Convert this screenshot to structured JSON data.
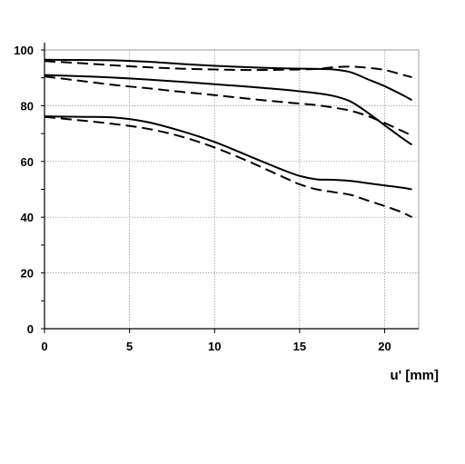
{
  "chart_data": {
    "type": "line",
    "title": "",
    "xlabel": "u' [mm]",
    "ylabel": "",
    "xlim": [
      0,
      22
    ],
    "ylim": [
      0,
      100
    ],
    "x_ticks": [
      0,
      5,
      10,
      15,
      20
    ],
    "y_ticks": [
      0,
      20,
      40,
      60,
      80,
      100
    ],
    "grid": true,
    "legend": "none",
    "series": [
      {
        "style": "solid",
        "color": "#000000",
        "x": [
          0,
          2,
          4,
          6,
          8,
          10,
          12,
          14,
          16,
          17,
          18,
          19,
          20,
          21,
          21.6
        ],
        "y": [
          96.5,
          96.4,
          96.3,
          95.8,
          95.0,
          94.3,
          93.8,
          93.4,
          93.2,
          93.0,
          92.0,
          89.5,
          87.0,
          84.0,
          82.0
        ]
      },
      {
        "style": "dashed",
        "color": "#000000",
        "x": [
          0,
          2,
          4,
          6,
          8,
          10,
          12,
          14,
          16,
          17,
          18,
          19,
          20,
          21,
          21.6
        ],
        "y": [
          96.0,
          95.3,
          94.5,
          93.8,
          93.3,
          93.0,
          92.8,
          92.9,
          93.2,
          93.8,
          94.0,
          93.6,
          92.8,
          91.2,
          90.2
        ]
      },
      {
        "style": "solid",
        "color": "#000000",
        "x": [
          0,
          2,
          4,
          6,
          8,
          10,
          12,
          14,
          16,
          17,
          18,
          19,
          20,
          21,
          21.6
        ],
        "y": [
          91.0,
          90.6,
          90.1,
          89.4,
          88.6,
          87.7,
          86.8,
          85.8,
          84.5,
          83.5,
          81.5,
          77.5,
          73.0,
          68.5,
          66.0
        ]
      },
      {
        "style": "dashed",
        "color": "#000000",
        "x": [
          0,
          2,
          4,
          6,
          8,
          10,
          12,
          14,
          16,
          17,
          18,
          19,
          20,
          21,
          21.6
        ],
        "y": [
          90.5,
          89.0,
          87.5,
          86.3,
          85.0,
          83.8,
          82.5,
          81.3,
          80.2,
          79.3,
          78.2,
          76.3,
          73.8,
          71.0,
          69.3
        ]
      },
      {
        "style": "solid",
        "color": "#000000",
        "x": [
          0,
          2,
          4,
          6,
          8,
          10,
          12,
          14,
          15,
          16,
          17,
          18,
          19,
          20,
          21,
          21.6
        ],
        "y": [
          76.2,
          76.0,
          75.8,
          74.2,
          71.0,
          67.0,
          62.0,
          57.0,
          54.8,
          53.6,
          53.4,
          53.0,
          52.2,
          51.4,
          50.6,
          50.0
        ]
      },
      {
        "style": "dashed",
        "color": "#000000",
        "x": [
          0,
          2,
          4,
          6,
          8,
          10,
          12,
          14,
          15,
          16,
          17,
          18,
          19,
          20,
          21,
          21.6
        ],
        "y": [
          76.0,
          74.8,
          73.5,
          71.8,
          69.0,
          65.0,
          60.0,
          54.5,
          51.8,
          50.0,
          49.0,
          48.0,
          46.0,
          44.0,
          41.8,
          40.0
        ]
      }
    ]
  }
}
